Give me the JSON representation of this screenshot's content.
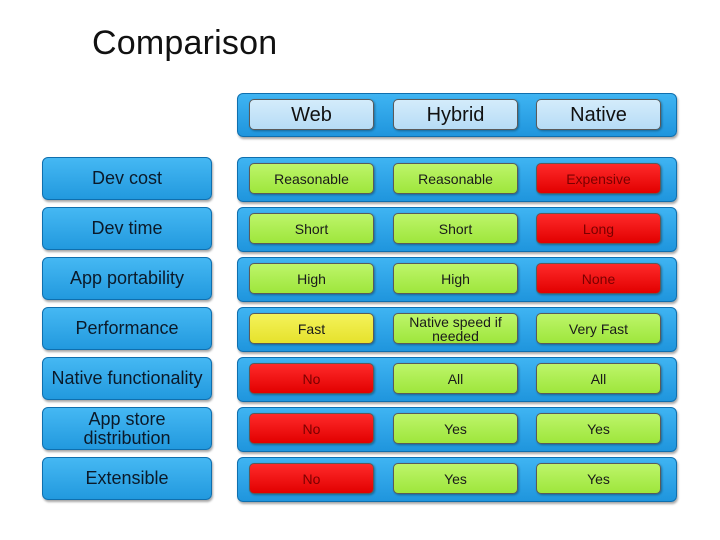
{
  "title": "Comparison",
  "columns": [
    "Web",
    "Hybrid",
    "Native"
  ],
  "rows": [
    {
      "label": "Dev cost",
      "cells": [
        {
          "text": "Reasonable",
          "rating": "good"
        },
        {
          "text": "Reasonable",
          "rating": "good"
        },
        {
          "text": "Expensive",
          "rating": "bad"
        }
      ]
    },
    {
      "label": "Dev time",
      "cells": [
        {
          "text": "Short",
          "rating": "good"
        },
        {
          "text": "Short",
          "rating": "good"
        },
        {
          "text": "Long",
          "rating": "bad"
        }
      ]
    },
    {
      "label": "App portability",
      "cells": [
        {
          "text": "High",
          "rating": "good"
        },
        {
          "text": "High",
          "rating": "good"
        },
        {
          "text": "None",
          "rating": "bad"
        }
      ]
    },
    {
      "label": "Performance",
      "cells": [
        {
          "text": "Fast",
          "rating": "mid"
        },
        {
          "text": "Native speed if needed",
          "rating": "good"
        },
        {
          "text": "Very Fast",
          "rating": "good"
        }
      ]
    },
    {
      "label": "Native functionality",
      "cells": [
        {
          "text": "No",
          "rating": "bad"
        },
        {
          "text": "All",
          "rating": "good"
        },
        {
          "text": "All",
          "rating": "good"
        }
      ]
    },
    {
      "label": "App store distribution",
      "cells": [
        {
          "text": "No",
          "rating": "bad"
        },
        {
          "text": "Yes",
          "rating": "good"
        },
        {
          "text": "Yes",
          "rating": "good"
        }
      ]
    },
    {
      "label": "Extensible",
      "cells": [
        {
          "text": "No",
          "rating": "bad"
        },
        {
          "text": "Yes",
          "rating": "good"
        },
        {
          "text": "Yes",
          "rating": "good"
        }
      ]
    }
  ],
  "colors": {
    "good": "#9ee63c",
    "bad": "#e10000",
    "mid": "#e6e22c",
    "band": "#1f95dd",
    "header_cell": "#b6dcf6"
  }
}
